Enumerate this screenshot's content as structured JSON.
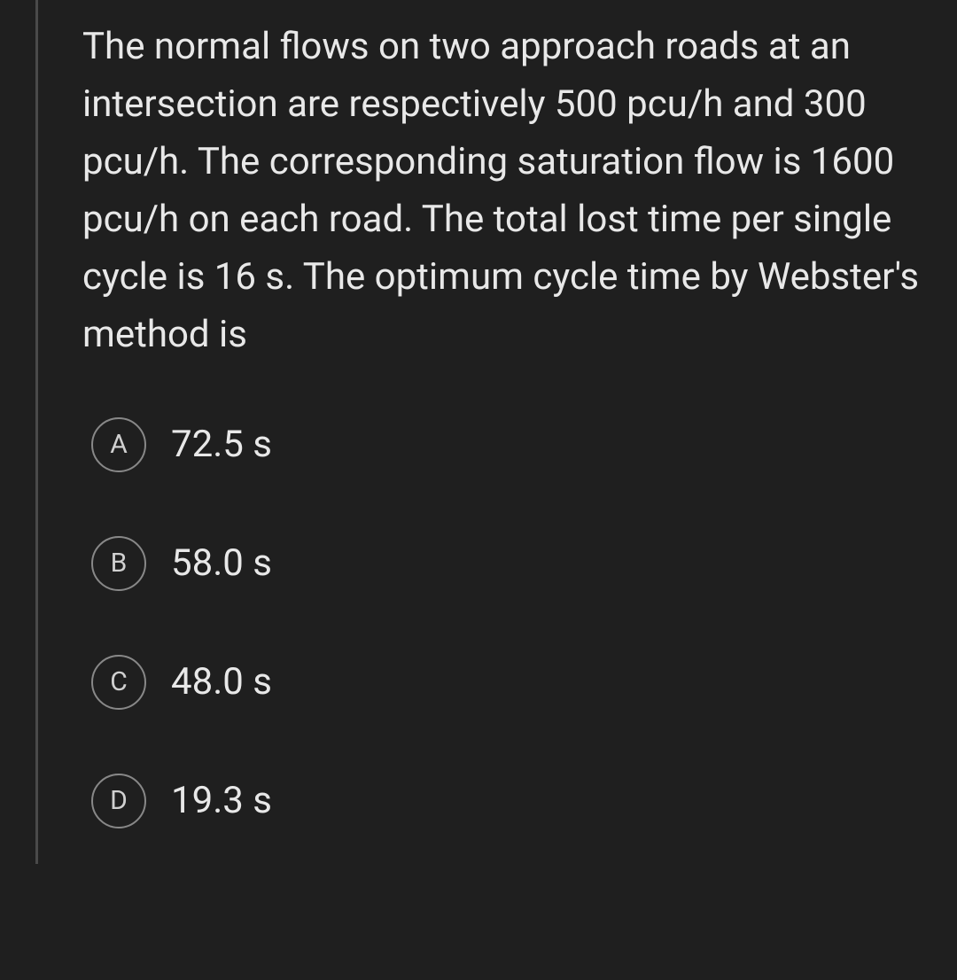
{
  "question": {
    "text": "The normal flows on two approach roads at an intersection are respectively 500 pcu/h and 300 pcu/h. The corresponding saturation flow is 1600 pcu/h on each road. The total lost time per single cycle is 16 s. The optimum cycle time by Webster's method is"
  },
  "options": [
    {
      "letter": "A",
      "text": "72.5 s"
    },
    {
      "letter": "B",
      "text": "58.0 s"
    },
    {
      "letter": "C",
      "text": "48.0 s"
    },
    {
      "letter": "D",
      "text": "19.3 s"
    }
  ],
  "colors": {
    "background": "#1f1f1f",
    "text": "#e8e8e8",
    "border": "#4a4a4a",
    "circle_border": "#888"
  }
}
